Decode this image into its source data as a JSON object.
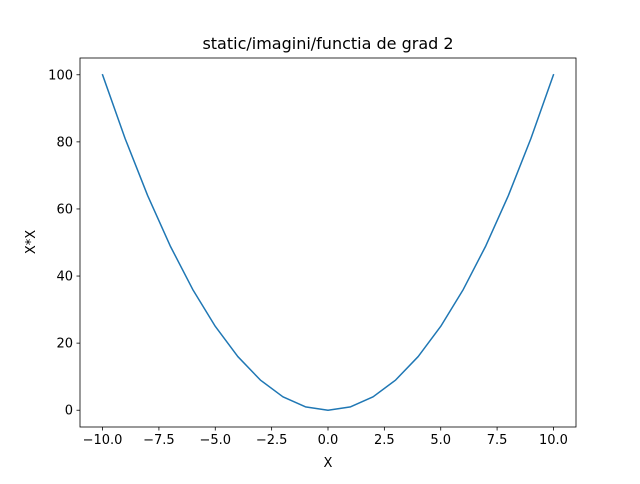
{
  "chart_data": {
    "type": "line",
    "title": "static/imagini/functia de grad 2",
    "xlabel": "X",
    "ylabel": "X*X",
    "xlim": [
      -11,
      11
    ],
    "ylim": [
      -5,
      105
    ],
    "xticks": [
      -10.0,
      -7.5,
      -5.0,
      -2.5,
      0.0,
      2.5,
      5.0,
      7.5,
      10.0
    ],
    "xtick_labels": [
      "−10.0",
      "−7.5",
      "−5.0",
      "−2.5",
      "0.0",
      "2.5",
      "5.0",
      "7.5",
      "10.0"
    ],
    "yticks": [
      0,
      20,
      40,
      60,
      80,
      100
    ],
    "ytick_labels": [
      "0",
      "20",
      "40",
      "60",
      "80",
      "100"
    ],
    "grid": false,
    "series": [
      {
        "color": "#1f77b4",
        "x": [
          -10,
          -9,
          -8,
          -7,
          -6,
          -5,
          -4,
          -3,
          -2,
          -1,
          0,
          1,
          2,
          3,
          4,
          5,
          6,
          7,
          8,
          9,
          10
        ],
        "y": [
          100,
          81,
          64,
          49,
          36,
          25,
          16,
          9,
          4,
          1,
          0,
          1,
          4,
          9,
          16,
          25,
          36,
          49,
          64,
          81,
          100
        ]
      }
    ]
  }
}
